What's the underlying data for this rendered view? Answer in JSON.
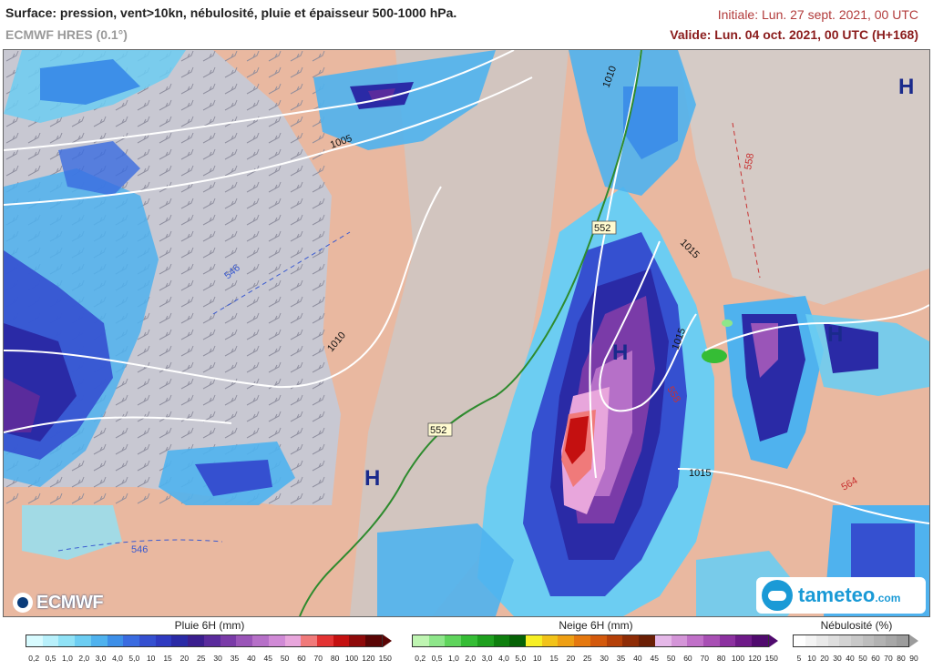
{
  "header": {
    "title": "Surface: pression, vent>10kn, nébulosité, pluie et épaisseur 500-1000 hPa.",
    "model": "ECMWF HRES (0.1°)",
    "initial": "Initiale: Lun. 27 sept. 2021, 00 UTC",
    "valid": "Valide: Lun. 04 oct. 2021, 00 UTC (H+168)"
  },
  "map": {
    "pressure_labels": [
      "1010",
      "1005",
      "1010",
      "1015",
      "1015",
      "1015"
    ],
    "thickness_labels": [
      "552",
      "552",
      "546",
      "546",
      "558",
      "558",
      "564"
    ],
    "high_markers": [
      "H",
      "H",
      "H",
      "H"
    ],
    "colors": {
      "land": "#e9b8a0",
      "cloud": "#c9c9c9",
      "isobar": "#ffffff",
      "thickness_line": "#2e8b2e",
      "high_marker": "#1a2a8c"
    }
  },
  "logos": {
    "ecmwf": "ECMWF",
    "tameteo": "tameteo",
    "tameteo_domain": ".com"
  },
  "legends": {
    "rain": {
      "title": "Pluie 6H (mm)",
      "ticks": [
        "0,2",
        "0,5",
        "1,0",
        "2,0",
        "3,0",
        "4,0",
        "5,0",
        "10",
        "15",
        "20",
        "25",
        "30",
        "35",
        "40",
        "45",
        "50",
        "60",
        "70",
        "80",
        "100",
        "120",
        "150"
      ],
      "colors": [
        "#d8fbff",
        "#b8f0fb",
        "#90e2f6",
        "#6ccdf2",
        "#4fb2ee",
        "#3d8fe8",
        "#3a6be0",
        "#3550d0",
        "#2f3ac0",
        "#2a2aa6",
        "#3a1e8e",
        "#5a2b9c",
        "#7a3ba8",
        "#9a55b8",
        "#b670c8",
        "#d08ad6",
        "#e8a6dc",
        "#f07a7a",
        "#e33333",
        "#c41010",
        "#8e0a0a",
        "#5a0505"
      ]
    },
    "snow": {
      "title": "Neige 6H (mm)",
      "ticks": [
        "0,2",
        "0,5",
        "1,0",
        "2,0",
        "3,0",
        "4,0",
        "5,0",
        "10",
        "15",
        "20",
        "25",
        "30",
        "35",
        "40",
        "45",
        "50",
        "60",
        "70",
        "80",
        "100",
        "120",
        "150"
      ],
      "colors": [
        "#bff5b2",
        "#8ee68a",
        "#5fd45c",
        "#35bd35",
        "#1ea01e",
        "#0e7f0e",
        "#066206",
        "#f6ef24",
        "#f2c319",
        "#ee9f14",
        "#e5780f",
        "#d3590c",
        "#b44008",
        "#8e2c06",
        "#6a1f05",
        "#e5b8e8",
        "#d495d8",
        "#c070c8",
        "#a84fb4",
        "#8c31a0",
        "#6e1a88",
        "#500a6e"
      ]
    },
    "cloud": {
      "title": "Nébulosité (%)",
      "ticks": [
        "5",
        "10",
        "20",
        "30",
        "40",
        "50",
        "60",
        "70",
        "80",
        "90"
      ],
      "colors": [
        "#ffffff",
        "#f4f4f4",
        "#e9e9e9",
        "#dedede",
        "#d3d3d3",
        "#c8c8c8",
        "#bdbdbd",
        "#b2b2b2",
        "#a7a7a7",
        "#9c9c9c"
      ]
    }
  }
}
